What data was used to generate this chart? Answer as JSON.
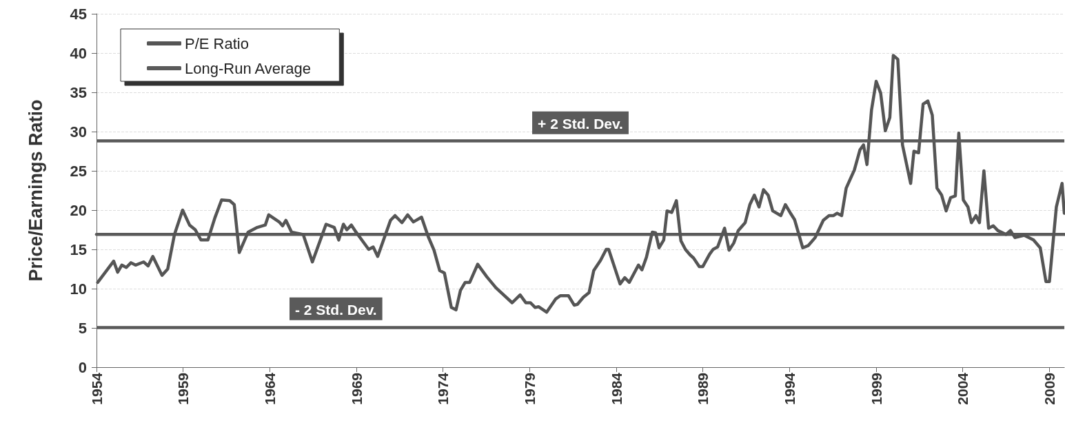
{
  "chart_data": {
    "type": "line",
    "ylabel": "Price/Earnings Ratio",
    "xlim": [
      1954,
      2009.86
    ],
    "xticks": [
      1954,
      1959,
      1964,
      1969,
      1974,
      1979,
      1984,
      1989,
      1994,
      1999,
      2004,
      2009
    ],
    "ylim": [
      0,
      45
    ],
    "yticks": [
      0,
      5,
      10,
      15,
      20,
      25,
      30,
      35,
      40,
      45
    ],
    "grid": "y",
    "legend": "top left",
    "marker": "none",
    "line_style": "solid",
    "series": [
      {
        "name": "P/E Ratio",
        "color": "#555555",
        "x": [
          1954.07,
          1954.99,
          1955.22,
          1955.46,
          1955.72,
          1955.99,
          1956.25,
          1956.72,
          1956.98,
          1957.25,
          1957.78,
          1958.11,
          1958.5,
          1958.97,
          1959.37,
          1959.7,
          1960.03,
          1960.43,
          1960.83,
          1961.22,
          1961.69,
          1961.95,
          1962.24,
          1962.75,
          1963.28,
          1963.74,
          1963.94,
          1964.54,
          1964.74,
          1964.93,
          1965.26,
          1965.93,
          1966.46,
          1967.25,
          1967.72,
          1967.98,
          1968.25,
          1968.45,
          1968.71,
          1968.98,
          1969.71,
          1969.97,
          1970.23,
          1970.97,
          1971.23,
          1971.63,
          1971.96,
          1972.29,
          1972.76,
          1973.15,
          1973.48,
          1973.81,
          1974.08,
          1974.48,
          1974.75,
          1975.01,
          1975.28,
          1975.54,
          1976,
          1976.53,
          1977.06,
          1977.99,
          1978.45,
          1978.78,
          1979.05,
          1979.32,
          1979.51,
          1979.98,
          1980.51,
          1980.77,
          1981.24,
          1981.57,
          1981.76,
          1982.1,
          1982.43,
          1982.7,
          1983.09,
          1983.42,
          1983.56,
          1984.22,
          1984.49,
          1984.75,
          1985.28,
          1985.48,
          1985.74,
          1986.08,
          1986.27,
          1986.47,
          1986.74,
          1986.93,
          1987.2,
          1987.47,
          1987.73,
          1987.99,
          1988.26,
          1988.46,
          1988.79,
          1988.99,
          1989.39,
          1989.59,
          1989.85,
          1990.25,
          1990.51,
          1990.78,
          1991.04,
          1991.44,
          1991.71,
          1991.97,
          1992.24,
          1992.5,
          1992.77,
          1993.03,
          1993.5,
          1993.76,
          1994.03,
          1994.29,
          1994.76,
          1995.09,
          1995.48,
          1995.95,
          1996.28,
          1996.54,
          1996.74,
          1997.01,
          1997.27,
          1997.74,
          1998.07,
          1998.27,
          1998.47,
          1998.73,
          1999,
          1999.26,
          1999.53,
          1999.79,
          1999.99,
          2000.25,
          2000.52,
          2000.99,
          2001.18,
          2001.45,
          2001.71,
          2001.98,
          2002.24,
          2002.51,
          2002.78,
          2003.04,
          2003.3,
          2003.57,
          2003.77,
          2004.03,
          2004.3,
          2004.5,
          2004.76,
          2004.96,
          2005.22,
          2005.49,
          2005.76,
          2006.02,
          2006.49,
          2006.75,
          2007.01,
          2007.54,
          2008.08,
          2008.47,
          2008.8,
          2009,
          2009.4,
          2009.73,
          2009.86
        ],
        "values": [
          10.8,
          13.5,
          12.1,
          13,
          12.7,
          13.3,
          13,
          13.4,
          12.9,
          14.1,
          11.7,
          12.5,
          16.9,
          20,
          18.1,
          17.5,
          16.2,
          16.2,
          19,
          21.3,
          21.2,
          20.7,
          14.6,
          17.2,
          17.8,
          18.1,
          19.4,
          18.5,
          18,
          18.7,
          17.2,
          16.9,
          13.4,
          18.2,
          17.8,
          16.2,
          18.2,
          17.5,
          18.1,
          17.2,
          15,
          15.3,
          14.1,
          18.7,
          19.3,
          18.4,
          19.4,
          18.5,
          19.1,
          16.6,
          14.9,
          12.3,
          12,
          7.6,
          7.3,
          9.8,
          10.8,
          10.8,
          13.1,
          11.5,
          10.1,
          8.2,
          9.2,
          8.2,
          8.2,
          7.6,
          7.7,
          7,
          8.7,
          9.1,
          9.1,
          7.9,
          8,
          8.9,
          9.5,
          12.3,
          13.6,
          15,
          15,
          10.6,
          11.4,
          10.8,
          13,
          12.4,
          14,
          17.2,
          17.1,
          15.2,
          16.2,
          19.9,
          19.7,
          21.2,
          16.1,
          15,
          14.3,
          13.9,
          12.8,
          12.8,
          14.4,
          15,
          15.3,
          17.7,
          14.9,
          15.8,
          17.4,
          18.4,
          20.7,
          21.9,
          20.4,
          22.6,
          21.9,
          19.9,
          19.3,
          20.7,
          19.7,
          18.8,
          15.2,
          15.5,
          16.5,
          18.7,
          19.3,
          19.3,
          19.6,
          19.3,
          22.8,
          25.1,
          27.7,
          28.3,
          25.8,
          32.7,
          36.4,
          34.9,
          30.1,
          31.8,
          39.7,
          39.2,
          28.3,
          23.4,
          27.5,
          27.3,
          33.5,
          33.9,
          32.1,
          22.8,
          21.9,
          19.9,
          21.6,
          21.8,
          29.8,
          21.3,
          20.4,
          18.4,
          19.3,
          18.4,
          25,
          17.7,
          18,
          17.4,
          16.9,
          17.4,
          16.5,
          16.8,
          16.2,
          15.2,
          10.9,
          10.9,
          20.4,
          23.4,
          19.6
        ]
      },
      {
        "name": "Long-Run Average",
        "color": "#5a5a5a",
        "x": [
          1954,
          2009.86
        ],
        "values": [
          16.9,
          16.9
        ]
      }
    ],
    "ref_lines": [
      {
        "axis": "y",
        "value": 28.8,
        "label": "+ 2 Std. Dev.",
        "color": "#5a5a5a"
      },
      {
        "axis": "y",
        "value": 5.1,
        "label": "- 2 Std. Dev.",
        "color": "#5a5a5a"
      }
    ]
  }
}
